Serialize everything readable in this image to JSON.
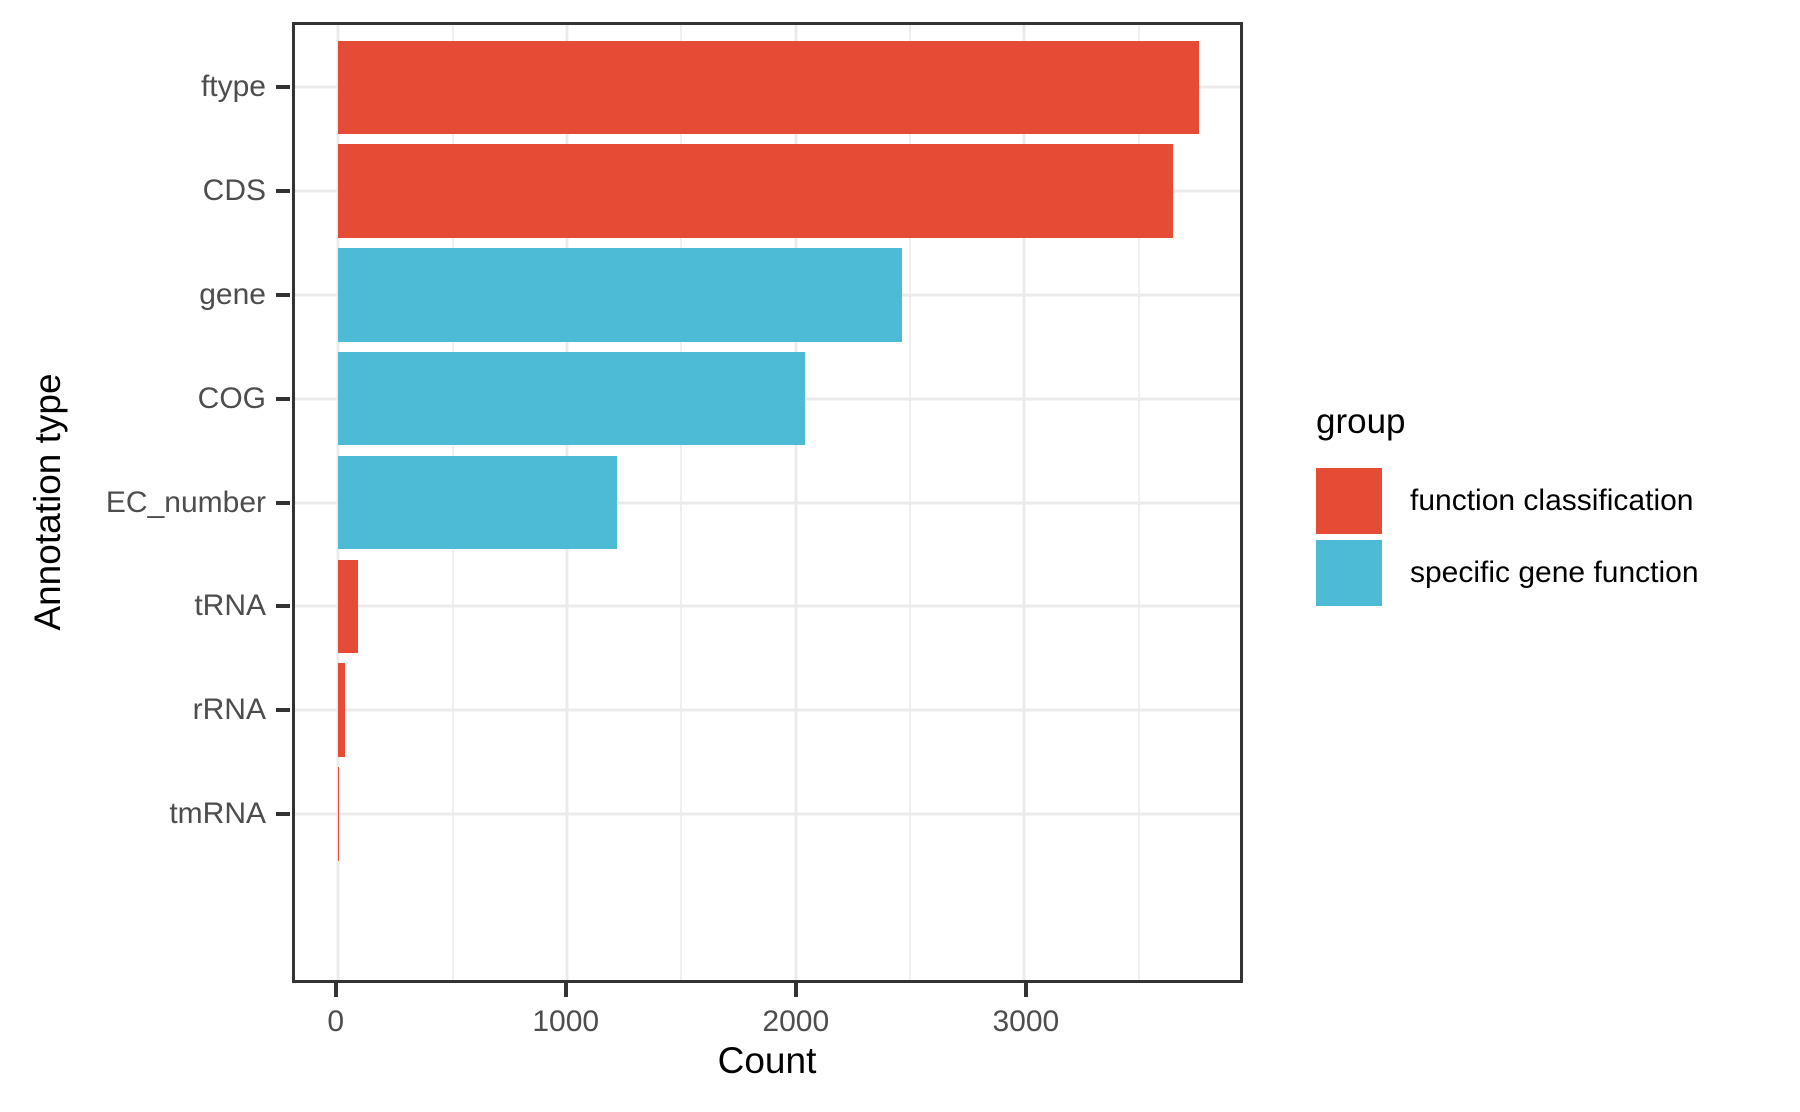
{
  "figure": {
    "background_color": "#FFFFFF",
    "panel_border_color": "#333333",
    "gridline_color": "#EBEBEB",
    "tick_mark_color": "#333333",
    "tick_label_color": "#4D4D4D",
    "axis_title_color": "#000000"
  },
  "chart_data": {
    "type": "bar",
    "orientation": "horizontal",
    "title": "",
    "xlabel": "Count",
    "ylabel": "Annotation type",
    "categories": [
      "ftype",
      "CDS",
      "gene",
      "COG",
      "EC_number",
      "tRNA",
      "rRNA",
      "tmRNA"
    ],
    "values": [
      3763,
      3650,
      2465,
      2040,
      1220,
      85,
      27,
      1
    ],
    "groups": [
      "function classification",
      "function classification",
      "specific gene function",
      "specific gene function",
      "specific gene function",
      "function classification",
      "function classification",
      "function classification"
    ],
    "group_colors": {
      "function classification": "#E64B35",
      "specific gene function": "#4DBBD5"
    },
    "x_major_ticks": [
      0,
      1000,
      2000,
      3000
    ],
    "x_minor_ticks": [
      500,
      1500,
      2500,
      3500
    ],
    "xlim": [
      -190,
      3944
    ],
    "bar_fraction": 0.9,
    "grid": true,
    "legend": {
      "title": "group",
      "position": "right",
      "entries": [
        {
          "label": "function classification",
          "color": "#E64B35"
        },
        {
          "label": "specific gene function",
          "color": "#4DBBD5"
        }
      ]
    }
  }
}
